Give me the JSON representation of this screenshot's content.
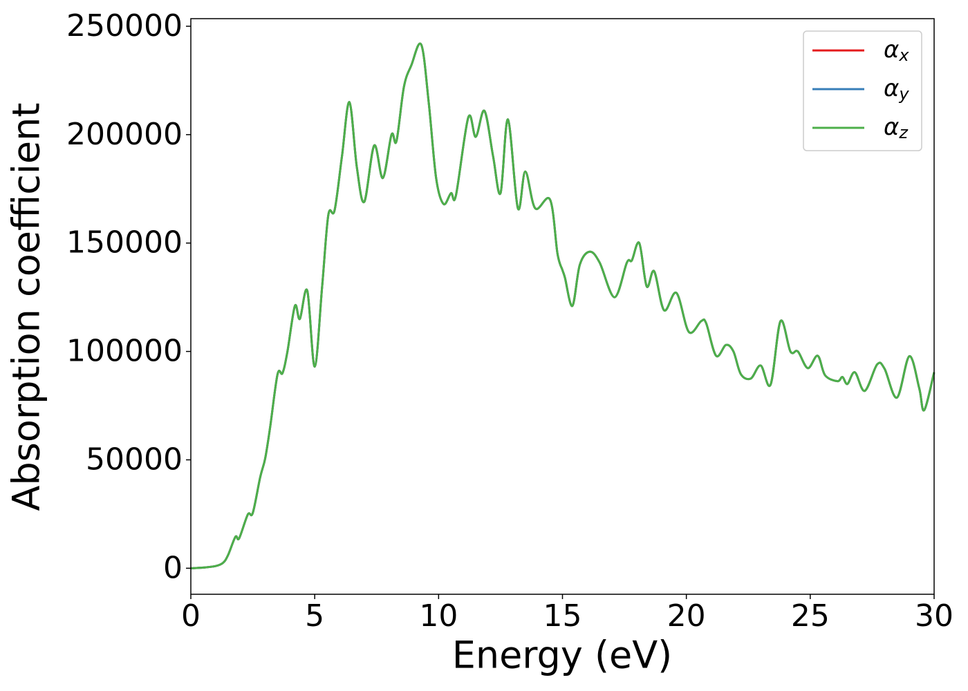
{
  "chart_data": {
    "type": "line",
    "xlabel": "Energy (eV)",
    "ylabel": "Absorption coefficient",
    "x": [
      0,
      0.5,
      1.0,
      1.3,
      1.5,
      1.8,
      1.95,
      2.3,
      2.5,
      2.8,
      3.0,
      3.2,
      3.5,
      3.7,
      3.9,
      4.2,
      4.4,
      4.7,
      5.0,
      5.3,
      5.55,
      5.8,
      6.1,
      6.4,
      6.7,
      7.0,
      7.4,
      7.75,
      8.1,
      8.3,
      8.6,
      8.9,
      9.3,
      9.6,
      9.9,
      10.2,
      10.5,
      10.7,
      11.2,
      11.5,
      11.85,
      12.2,
      12.5,
      12.8,
      13.2,
      13.5,
      13.9,
      14.5,
      14.8,
      15.0,
      15.1,
      15.4,
      15.7,
      16.1,
      16.5,
      17.1,
      17.6,
      17.8,
      18.1,
      18.4,
      18.7,
      19.1,
      19.6,
      20.1,
      20.6,
      20.8,
      21.2,
      21.6,
      21.9,
      22.2,
      22.6,
      23.0,
      23.4,
      23.8,
      24.2,
      24.5,
      24.9,
      25.3,
      25.6,
      26.1,
      26.3,
      26.5,
      26.8,
      27.2,
      27.7,
      28.0,
      28.5,
      29.0,
      29.4,
      29.6,
      30.0
    ],
    "series": [
      {
        "name": "αx",
        "color": "#e41a1c",
        "values": [
          0,
          300,
          1000,
          2500,
          6000,
          14500,
          13800,
          24800,
          25500,
          42000,
          50600,
          65000,
          89500,
          90000,
          100000,
          121000,
          115000,
          128000,
          93000,
          130000,
          163000,
          165000,
          190000,
          215000,
          185000,
          169000,
          195000,
          180000,
          200000,
          197000,
          222000,
          232000,
          241500,
          215000,
          180000,
          168000,
          173000,
          172000,
          208000,
          199000,
          211000,
          190000,
          173000,
          207000,
          166000,
          183000,
          166000,
          170000,
          145000,
          137500,
          134000,
          121000,
          140000,
          146000,
          141000,
          125000,
          141000,
          142000,
          150000,
          130000,
          137000,
          119000,
          127000,
          109000,
          114000,
          113000,
          98000,
          103000,
          100000,
          89500,
          87500,
          93500,
          84700,
          114000,
          100000,
          100000,
          92300,
          98000,
          89000,
          86300,
          88200,
          85000,
          90400,
          81800,
          94000,
          92000,
          78700,
          97800,
          83000,
          72900,
          90400
        ]
      },
      {
        "name": "αy",
        "color": "#377eb8",
        "values": [
          0,
          300,
          1000,
          2500,
          6000,
          14500,
          13800,
          24800,
          25500,
          42000,
          50600,
          65000,
          89500,
          90000,
          100000,
          121000,
          115000,
          128000,
          93000,
          130000,
          163000,
          165000,
          190000,
          215000,
          185000,
          169000,
          195000,
          180000,
          200000,
          197000,
          222000,
          232000,
          241500,
          215000,
          180000,
          168000,
          173000,
          172000,
          208000,
          199000,
          211000,
          190000,
          173000,
          207000,
          166000,
          183000,
          166000,
          170000,
          145000,
          137500,
          134000,
          121000,
          140000,
          146000,
          141000,
          125000,
          141000,
          142000,
          150000,
          130000,
          137000,
          119000,
          127000,
          109000,
          114000,
          113000,
          98000,
          103000,
          100000,
          89500,
          87500,
          93500,
          84700,
          114000,
          100000,
          100000,
          92300,
          98000,
          89000,
          86300,
          88200,
          85000,
          90400,
          81800,
          94000,
          92000,
          78700,
          97800,
          83000,
          72900,
          90400
        ]
      },
      {
        "name": "αz",
        "color": "#4daf4a",
        "values": [
          0,
          300,
          1000,
          2500,
          6000,
          14500,
          13800,
          24800,
          25500,
          42000,
          50600,
          65000,
          89500,
          90000,
          100000,
          121000,
          115000,
          128000,
          93000,
          130000,
          163000,
          165000,
          190000,
          215000,
          185000,
          169000,
          195000,
          180000,
          200000,
          197000,
          222000,
          232000,
          241500,
          215000,
          180000,
          168000,
          173000,
          172000,
          208000,
          199000,
          211000,
          190000,
          173000,
          207000,
          166000,
          183000,
          166000,
          170000,
          145000,
          137500,
          134000,
          121000,
          140000,
          146000,
          141000,
          125000,
          141000,
          142000,
          150000,
          130000,
          137000,
          119000,
          127000,
          109000,
          114000,
          113000,
          98000,
          103000,
          100000,
          89500,
          87500,
          93500,
          84700,
          114000,
          100000,
          100000,
          92300,
          98000,
          89000,
          86300,
          88200,
          85000,
          90400,
          81800,
          94000,
          92000,
          78700,
          97800,
          83000,
          72900,
          90400
        ]
      }
    ],
    "xlim": [
      0,
      30
    ],
    "xticks": [
      0,
      5,
      10,
      15,
      20,
      25,
      30
    ],
    "ylim": [
      -12000,
      253500
    ],
    "yticks": [
      0,
      50000,
      100000,
      150000,
      200000,
      250000
    ],
    "legend": "upper right"
  }
}
